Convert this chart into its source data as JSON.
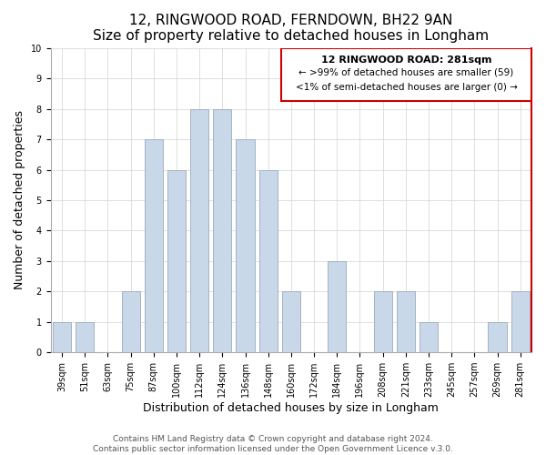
{
  "title": "12, RINGWOOD ROAD, FERNDOWN, BH22 9AN",
  "subtitle": "Size of property relative to detached houses in Longham",
  "xlabel": "Distribution of detached houses by size in Longham",
  "ylabel": "Number of detached properties",
  "bar_labels": [
    "39sqm",
    "51sqm",
    "63sqm",
    "75sqm",
    "87sqm",
    "100sqm",
    "112sqm",
    "124sqm",
    "136sqm",
    "148sqm",
    "160sqm",
    "172sqm",
    "184sqm",
    "196sqm",
    "208sqm",
    "221sqm",
    "233sqm",
    "245sqm",
    "257sqm",
    "269sqm",
    "281sqm"
  ],
  "bar_values": [
    1,
    1,
    0,
    2,
    7,
    6,
    8,
    8,
    7,
    6,
    2,
    0,
    3,
    0,
    2,
    2,
    1,
    0,
    0,
    1,
    2
  ],
  "bar_color": "#c8d8e8",
  "bar_edge_color": "#9aaabb",
  "highlight_box_color": "#cc0000",
  "ylim": [
    0,
    10
  ],
  "yticks": [
    0,
    1,
    2,
    3,
    4,
    5,
    6,
    7,
    8,
    9,
    10
  ],
  "legend_title": "12 RINGWOOD ROAD: 281sqm",
  "legend_line1": "← >99% of detached houses are smaller (59)",
  "legend_line2": "<1% of semi-detached houses are larger (0) →",
  "footer_line1": "Contains HM Land Registry data © Crown copyright and database right 2024.",
  "footer_line2": "Contains public sector information licensed under the Open Government Licence v.3.0.",
  "title_fontsize": 11,
  "subtitle_fontsize": 9.5,
  "axis_label_fontsize": 9,
  "tick_fontsize": 7,
  "footer_fontsize": 6.5,
  "annotation_fontsize": 7.5,
  "annotation_title_fontsize": 8
}
